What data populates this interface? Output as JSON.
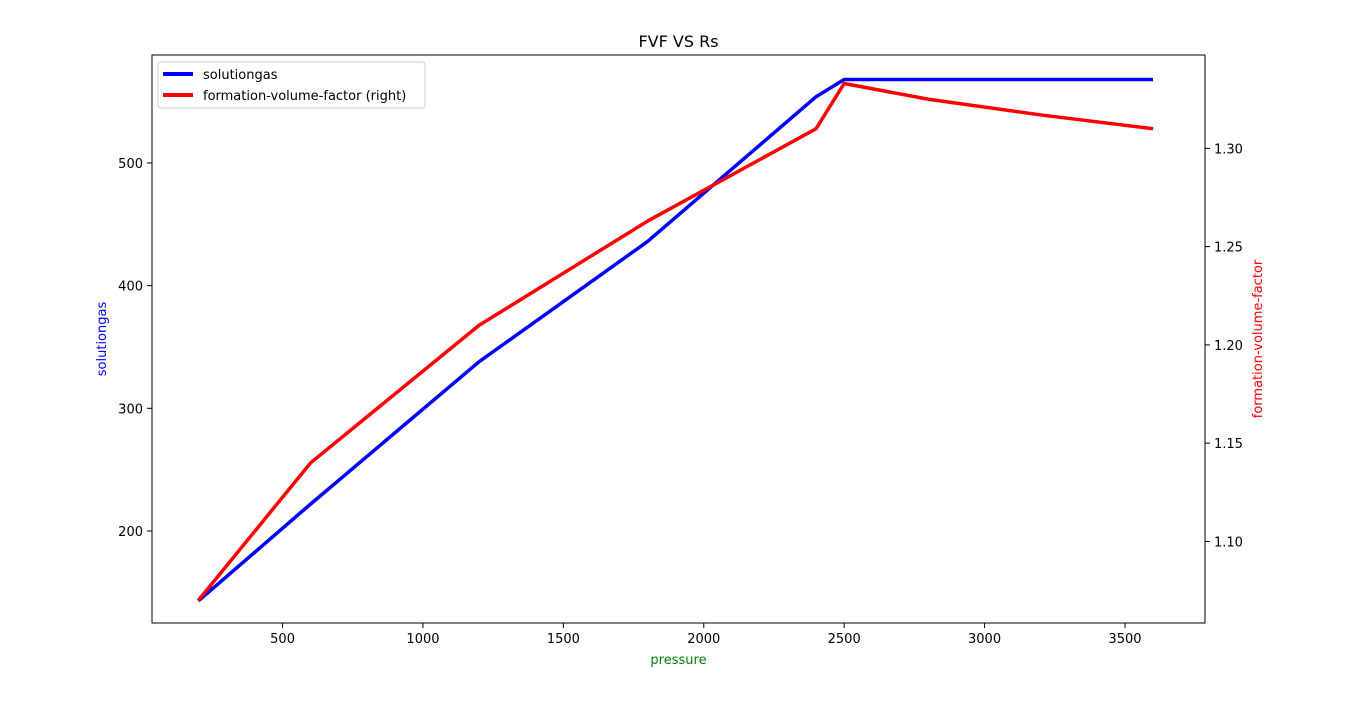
{
  "chart_data": {
    "type": "line",
    "title": "FVF VS Rs",
    "xlabel": "pressure",
    "xlabel_color": "#008000",
    "ylabel": "solutiongas",
    "ylabel_color": "#0000ff",
    "ylabel_right": "formation-volume-factor",
    "ylabel_right_color": "#ff0000",
    "xlim": [
      35,
      3785
    ],
    "ylim": [
      125,
      588
    ],
    "ylim_right": [
      1.0585,
      1.3475
    ],
    "x_ticks": [
      500,
      1000,
      1500,
      2000,
      2500,
      3000,
      3500
    ],
    "y_ticks": [
      200,
      300,
      400,
      500
    ],
    "y_right_ticks": [
      1.1,
      1.15,
      1.2,
      1.25,
      1.3
    ],
    "y_right_tick_labels": [
      "1.10",
      "1.15",
      "1.20",
      "1.25",
      "1.30"
    ],
    "grid": false,
    "legend_position": "upper-left",
    "series": [
      {
        "name": "solutiongas",
        "axis": "left",
        "color": "#0000ff",
        "x": [
          200,
          600,
          1200,
          1800,
          2400,
          2500,
          2800,
          3200,
          3600
        ],
        "y": [
          143,
          222,
          338,
          436,
          554,
          568,
          568,
          568,
          568
        ]
      },
      {
        "name": "formation-volume-factor (right)",
        "axis": "right",
        "color": "#ff0000",
        "x": [
          200,
          600,
          1200,
          1800,
          2400,
          2500,
          2800,
          3200,
          3600
        ],
        "y": [
          1.07,
          1.14,
          1.21,
          1.263,
          1.31,
          1.333,
          1.325,
          1.317,
          1.31
        ]
      }
    ]
  }
}
